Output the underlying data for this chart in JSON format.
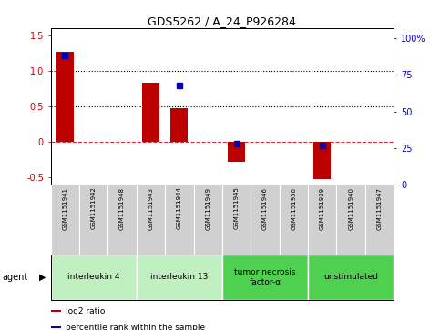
{
  "title": "GDS5262 / A_24_P926284",
  "samples": [
    "GSM1151941",
    "GSM1151942",
    "GSM1151948",
    "GSM1151943",
    "GSM1151944",
    "GSM1151949",
    "GSM1151945",
    "GSM1151946",
    "GSM1151950",
    "GSM1151939",
    "GSM1151940",
    "GSM1151947"
  ],
  "log2_ratio": [
    1.27,
    0.0,
    0.0,
    0.83,
    0.47,
    0.0,
    -0.28,
    0.0,
    0.0,
    -0.52,
    0.0,
    0.0
  ],
  "percentile": [
    88,
    null,
    null,
    null,
    68,
    null,
    28,
    null,
    null,
    27,
    null,
    null
  ],
  "groups": [
    {
      "label": "interleukin 4",
      "start": 0,
      "end": 3,
      "color": "#c0f0c0"
    },
    {
      "label": "interleukin 13",
      "start": 3,
      "end": 6,
      "color": "#c0f0c0"
    },
    {
      "label": "tumor necrosis\nfactor-α",
      "start": 6,
      "end": 9,
      "color": "#50d050"
    },
    {
      "label": "unstimulated",
      "start": 9,
      "end": 12,
      "color": "#50d050"
    }
  ],
  "bar_color": "#bb0000",
  "dot_color": "#0000bb",
  "ylim_left": [
    -0.6,
    1.6
  ],
  "ylim_right": [
    0,
    107
  ],
  "yticks_left": [
    -0.5,
    0.0,
    0.5,
    1.0,
    1.5
  ],
  "yticks_right": [
    0,
    25,
    50,
    75,
    100
  ],
  "hlines": [
    0.0,
    0.5,
    1.0
  ],
  "hline_styles": [
    "dashed",
    "dotted",
    "dotted"
  ],
  "hline_colors": [
    "#cc3333",
    "black",
    "black"
  ],
  "background_color": "#ffffff",
  "sample_box_color": "#d0d0d0",
  "agent_label": "agent",
  "legend_items": [
    {
      "label": "log2 ratio",
      "color": "#bb0000"
    },
    {
      "label": "percentile rank within the sample",
      "color": "#0000bb"
    }
  ]
}
